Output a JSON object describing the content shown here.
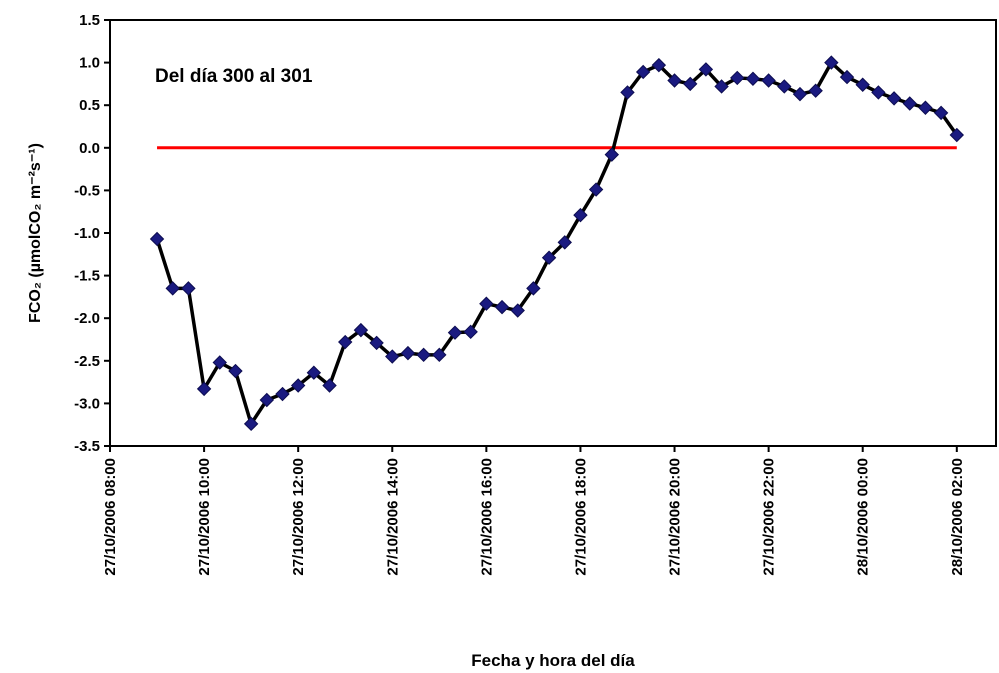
{
  "chart_data": {
    "type": "line",
    "annotation": "Del día 300 al 301",
    "xlabel": "Fecha y hora del día",
    "ylabel": "FCO₂ (µmolCO₂ m⁻²s⁻¹)",
    "x": [
      "27/10/2006 09:00",
      "27/10/2006 09:20",
      "27/10/2006 09:40",
      "27/10/2006 10:00",
      "27/10/2006 10:20",
      "27/10/2006 10:40",
      "27/10/2006 11:00",
      "27/10/2006 11:20",
      "27/10/2006 11:40",
      "27/10/2006 12:00",
      "27/10/2006 12:20",
      "27/10/2006 12:40",
      "27/10/2006 13:00",
      "27/10/2006 13:20",
      "27/10/2006 13:40",
      "27/10/2006 14:00",
      "27/10/2006 14:20",
      "27/10/2006 14:40",
      "27/10/2006 15:00",
      "27/10/2006 15:20",
      "27/10/2006 15:40",
      "27/10/2006 16:00",
      "27/10/2006 16:20",
      "27/10/2006 16:40",
      "27/10/2006 17:00",
      "27/10/2006 17:20",
      "27/10/2006 17:40",
      "27/10/2006 18:00",
      "27/10/2006 18:20",
      "27/10/2006 18:40",
      "27/10/2006 19:00",
      "27/10/2006 19:20",
      "27/10/2006 19:40",
      "27/10/2006 20:00",
      "27/10/2006 20:20",
      "27/10/2006 20:40",
      "27/10/2006 21:00",
      "27/10/2006 21:20",
      "27/10/2006 21:40",
      "27/10/2006 22:00",
      "27/10/2006 22:20",
      "27/10/2006 22:40",
      "27/10/2006 23:00",
      "27/10/2006 23:20",
      "27/10/2006 23:40",
      "28/10/2006 00:00",
      "28/10/2006 00:20",
      "28/10/2006 00:40",
      "28/10/2006 01:00",
      "28/10/2006 01:20",
      "28/10/2006 01:40",
      "28/10/2006 02:00"
    ],
    "series": [
      {
        "color": "#000000",
        "marker_color": "#1a1a80",
        "values": [
          -1.07,
          -1.65,
          -1.65,
          -2.83,
          -2.52,
          -2.62,
          -3.24,
          -2.96,
          -2.89,
          -2.79,
          -2.64,
          -2.79,
          -2.28,
          -2.14,
          -2.29,
          -2.45,
          -2.41,
          -2.43,
          -2.43,
          -2.17,
          -2.16,
          -1.83,
          -1.87,
          -1.91,
          -1.65,
          -1.29,
          -1.11,
          -0.79,
          -0.49,
          -0.08,
          0.65,
          0.89,
          0.97,
          0.79,
          0.75,
          0.92,
          0.72,
          0.82,
          0.81,
          0.79,
          0.72,
          0.63,
          0.67,
          1.0,
          0.83,
          0.74,
          0.65,
          0.58,
          0.52,
          0.47,
          0.41,
          0.15
        ]
      }
    ],
    "reference_line": {
      "value": 0,
      "color": "#ff0000"
    },
    "xlim": [
      "27/10/2006 08:00",
      "28/10/2006 02:50"
    ],
    "xticks": [
      "27/10/2006 08:00",
      "27/10/2006 10:00",
      "27/10/2006 12:00",
      "27/10/2006 14:00",
      "27/10/2006 16:00",
      "27/10/2006 18:00",
      "27/10/2006 20:00",
      "27/10/2006 22:00",
      "28/10/2006 00:00",
      "28/10/2006 02:00"
    ],
    "ylim": [
      -3.5,
      1.5
    ],
    "yticks": [
      {
        "value": 1.5,
        "label": "1.5"
      },
      {
        "value": 1,
        "label": "1.0"
      },
      {
        "value": 0.5,
        "label": "0.5"
      },
      {
        "value": 0,
        "label": "0.0"
      },
      {
        "value": -0.5,
        "label": "-0.5"
      },
      {
        "value": -1,
        "label": "-1.0"
      },
      {
        "value": -1.5,
        "label": "-1.5"
      },
      {
        "value": -2,
        "label": "-2.0"
      },
      {
        "value": -2.5,
        "label": "-2.5"
      },
      {
        "value": -3,
        "label": "-3.0"
      },
      {
        "value": -3.5,
        "label": "-3.5"
      }
    ]
  }
}
